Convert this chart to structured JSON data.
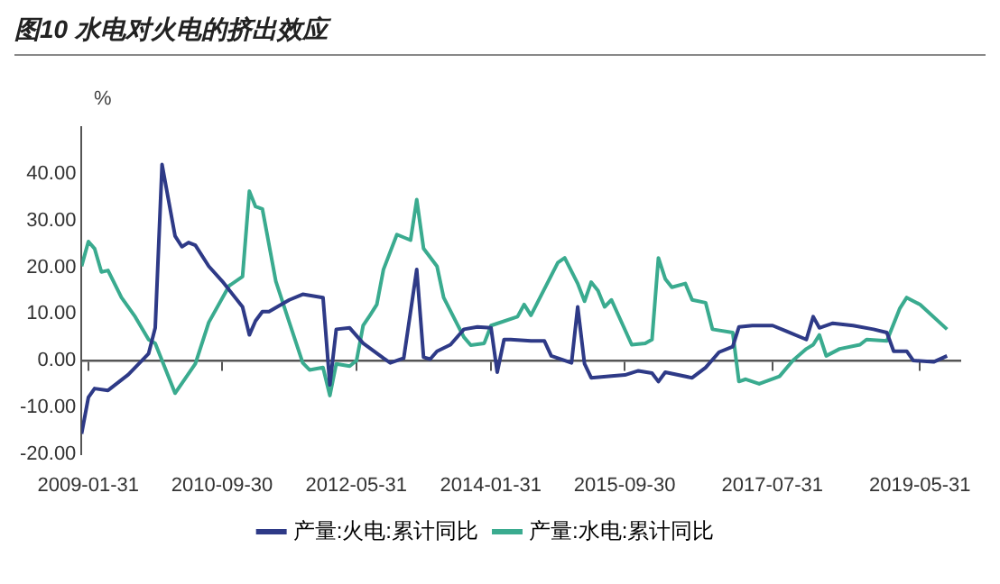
{
  "chart_data": {
    "type": "line",
    "title": "图10 水电对火电的挤出效应",
    "ylabel": "%",
    "xlim": [
      "2009-01-01",
      "2019-11-30"
    ],
    "xticks": [
      "2009-01-31",
      "2010-09-30",
      "2012-05-31",
      "2014-01-31",
      "2015-09-30",
      "2017-07-31",
      "2019-05-31"
    ],
    "ylim": [
      -20,
      50
    ],
    "yticks": [
      {
        "value": -20,
        "label": "-20.00"
      },
      {
        "value": -10,
        "label": "-10.00"
      },
      {
        "value": 0,
        "label": "0.00"
      },
      {
        "value": 10,
        "label": "10.00"
      },
      {
        "value": 20,
        "label": "20.00"
      },
      {
        "value": 30,
        "label": "30.00"
      },
      {
        "value": 40,
        "label": "40.00"
      }
    ],
    "legend": "bottom",
    "marker": "none",
    "line_style": "solid",
    "series": [
      {
        "name": "产量:火电:累计同比",
        "color": "#2e3a87",
        "x": [
          "2009-01",
          "2009-02",
          "2009-03",
          "2009-05",
          "2009-08",
          "2009-11",
          "2009-12",
          "2010-01",
          "2010-03",
          "2010-04",
          "2010-05",
          "2010-06",
          "2010-08",
          "2010-10",
          "2011-01",
          "2011-02",
          "2011-03",
          "2011-04",
          "2011-05",
          "2011-08",
          "2011-10",
          "2012-01",
          "2012-02",
          "2012-03",
          "2012-05",
          "2012-07",
          "2012-10",
          "2012-11",
          "2013-01",
          "2013-03",
          "2013-04",
          "2013-05",
          "2013-06",
          "2013-08",
          "2013-10",
          "2013-12",
          "2014-02",
          "2014-03",
          "2014-04",
          "2014-05",
          "2014-08",
          "2014-10",
          "2014-11",
          "2015-02",
          "2015-03",
          "2015-04",
          "2015-05",
          "2015-08",
          "2015-10",
          "2015-12",
          "2016-02",
          "2016-03",
          "2016-04",
          "2016-08",
          "2016-10",
          "2016-12",
          "2017-02",
          "2017-03",
          "2017-05",
          "2017-08",
          "2017-10",
          "2018-01",
          "2018-02",
          "2018-03",
          "2018-05",
          "2018-08",
          "2018-11",
          "2019-01",
          "2019-02",
          "2019-04",
          "2019-05",
          "2019-08",
          "2019-10"
        ],
        "values": [
          -15.7,
          -7.9,
          -6,
          -6.4,
          -3,
          1.5,
          7,
          42,
          26.7,
          24.4,
          25.3,
          24.7,
          20.2,
          17,
          11.5,
          5.5,
          8.5,
          10.5,
          10.5,
          13,
          14.2,
          13.5,
          -5.2,
          6.7,
          7,
          3.7,
          0.5,
          -0.5,
          0.5,
          19.5,
          0.7,
          0.3,
          2,
          3.4,
          6.7,
          7.2,
          7,
          -2.5,
          4.5,
          4.5,
          4.2,
          4.2,
          1,
          -0.5,
          11.5,
          -0.7,
          -3.7,
          -3.3,
          -3.1,
          -2.2,
          -2.7,
          -4.5,
          -2.5,
          -3.7,
          -1.5,
          1.8,
          3,
          7.2,
          7.5,
          7.5,
          6.3,
          4.5,
          9.4,
          7,
          8,
          7.5,
          6.7,
          6,
          2,
          2,
          0,
          -0.3,
          1
        ]
      },
      {
        "name": "产量:水电:累计同比",
        "color": "#3aab8f",
        "x": [
          "2009-01",
          "2009-02",
          "2009-03",
          "2009-04",
          "2009-05",
          "2009-07",
          "2009-09",
          "2009-11",
          "2009-12",
          "2010-03",
          "2010-06",
          "2010-08",
          "2010-11",
          "2011-01",
          "2011-02",
          "2011-03",
          "2011-04",
          "2011-06",
          "2011-08",
          "2011-10",
          "2011-11",
          "2012-01",
          "2012-02",
          "2012-03",
          "2012-05",
          "2012-06",
          "2012-07",
          "2012-08",
          "2012-09",
          "2012-10",
          "2012-12",
          "2013-02",
          "2013-03",
          "2013-04",
          "2013-06",
          "2013-07",
          "2013-10",
          "2013-11",
          "2014-01",
          "2014-02",
          "2014-06",
          "2014-07",
          "2014-08",
          "2014-12",
          "2015-01",
          "2015-03",
          "2015-04",
          "2015-05",
          "2015-06",
          "2015-07",
          "2015-08",
          "2015-11",
          "2016-01",
          "2016-02",
          "2016-03",
          "2016-04",
          "2016-05",
          "2016-07",
          "2016-08",
          "2016-10",
          "2016-11",
          "2017-02",
          "2017-03",
          "2017-04",
          "2017-06",
          "2017-09",
          "2017-11",
          "2018-01",
          "2018-02",
          "2018-03",
          "2018-04",
          "2018-06",
          "2018-09",
          "2018-10",
          "2019-01",
          "2019-03",
          "2019-04",
          "2019-06",
          "2019-10"
        ],
        "values": [
          20.2,
          25.5,
          24,
          19,
          19.3,
          13.5,
          9.4,
          4.5,
          3.7,
          -7,
          -0.7,
          8.2,
          16,
          18,
          36.3,
          33,
          32.5,
          17,
          8.2,
          -0.5,
          -2,
          -1.5,
          -7.5,
          -0.7,
          -1.2,
          0,
          7.5,
          9.7,
          12,
          19.5,
          27,
          25.8,
          34.5,
          24,
          20.2,
          13.5,
          5,
          3.3,
          3.7,
          7.5,
          9.4,
          12,
          9.7,
          21,
          22,
          16.5,
          12.7,
          16.8,
          15,
          11.5,
          13,
          3.4,
          3.7,
          4.5,
          22,
          17.5,
          15.7,
          16.5,
          13,
          12.4,
          6.7,
          6,
          -4.5,
          -4,
          -5,
          -3.4,
          0,
          2.5,
          3.4,
          5.5,
          1,
          2.5,
          3.4,
          4.5,
          4.2,
          11.2,
          13.5,
          12,
          6.7
        ]
      }
    ]
  }
}
